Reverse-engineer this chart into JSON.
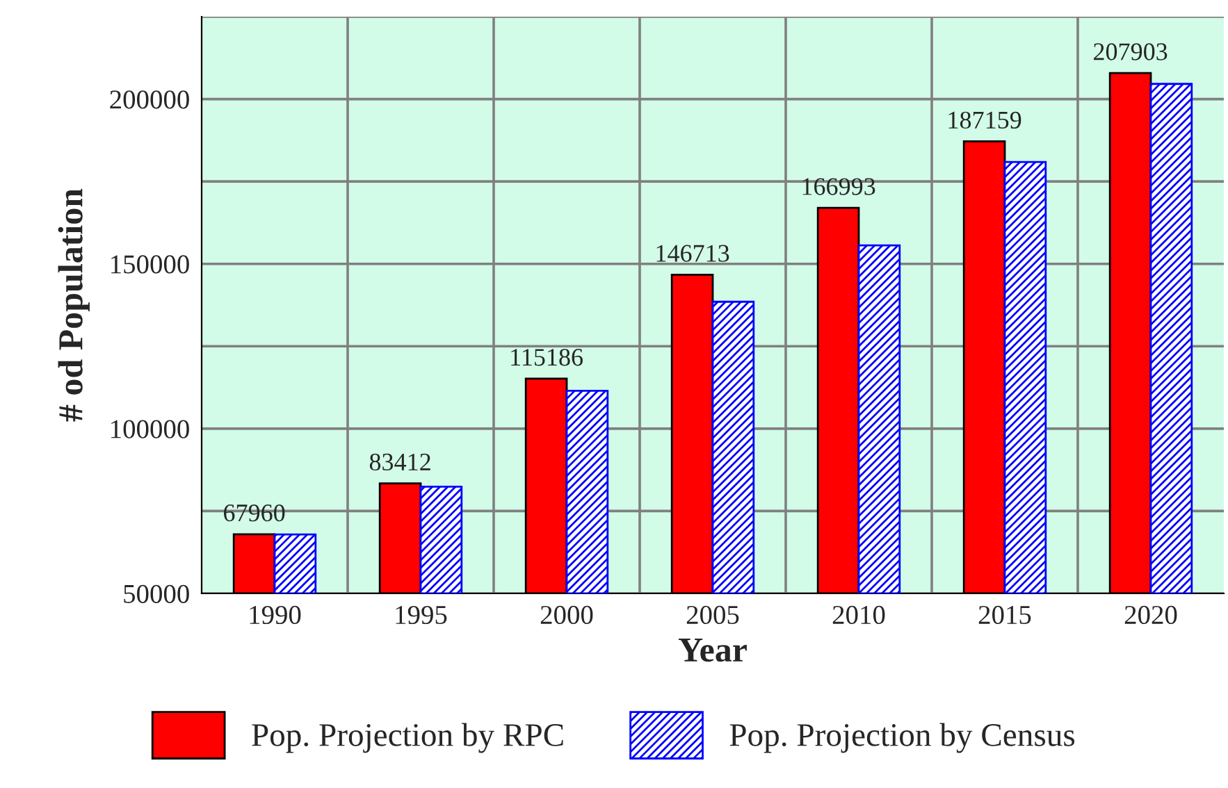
{
  "chart_data": {
    "type": "bar",
    "xlabel": "Year",
    "ylabel": "# od Population",
    "categories": [
      "1990",
      "1995",
      "2000",
      "2005",
      "2010",
      "2015",
      "2020"
    ],
    "series": [
      {
        "name": "Pop. Projection by RPC",
        "color": "#ff0000",
        "values": [
          67960,
          83412,
          115186,
          146713,
          166993,
          187159,
          207903
        ],
        "value_labels": [
          "67960",
          "83412",
          "115186",
          "146713",
          "166993",
          "187159",
          "207903"
        ]
      },
      {
        "name": "Pop. Projection by Census",
        "color": "#0000ff",
        "values": [
          67900,
          82400,
          111500,
          138500,
          155600,
          180900,
          204600
        ]
      }
    ],
    "ylim": [
      50000,
      225000
    ],
    "yticks": [
      50000,
      {
        "value": 75000,
        "label": null
      },
      100000,
      {
        "value": 125000,
        "label": null
      },
      150000,
      {
        "value": 175000,
        "label": null
      },
      200000,
      {
        "value": 225000,
        "label": null
      }
    ],
    "grid": true,
    "legend": "bottom"
  }
}
